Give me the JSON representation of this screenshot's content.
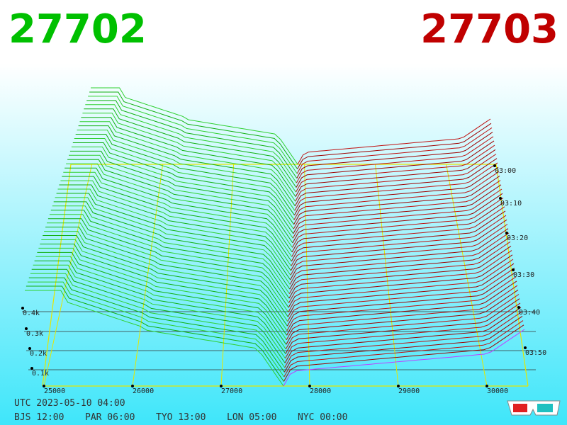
{
  "header": {
    "bid": "27702",
    "ask": "27703"
  },
  "depth_labels": [
    "0.4k",
    "0.3k",
    "0.2k",
    "0.1k"
  ],
  "price_labels": [
    "25000",
    "26000",
    "27000",
    "28000",
    "29000",
    "30000"
  ],
  "time_labels": [
    "03:00",
    "03:10",
    "03:20",
    "03:30",
    "03:40",
    "03:50"
  ],
  "footer": {
    "utc": "UTC 2023-05-10 04:00",
    "zones": [
      "BJS 12:00",
      "PAR 06:00",
      "TYO 13:00",
      "LON 05:00",
      "NYC 00:00"
    ]
  }
}
